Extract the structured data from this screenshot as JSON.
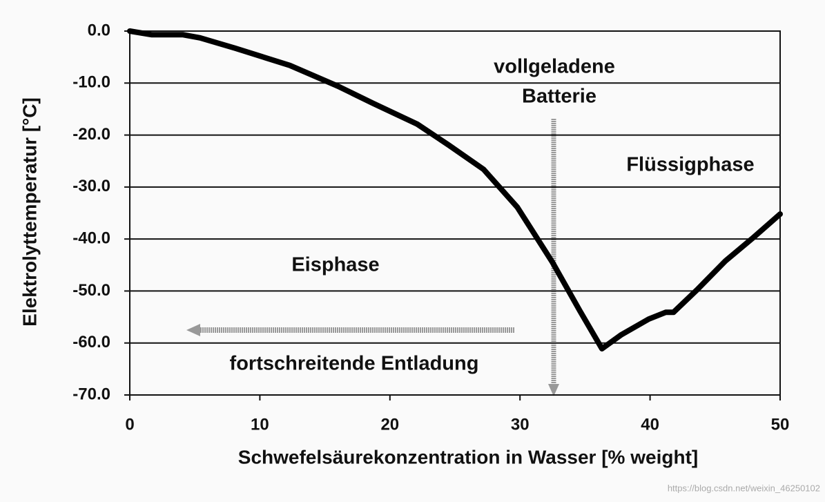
{
  "chart_data": {
    "type": "line",
    "y_label": "Elektrolyttemperatur [°C]",
    "x_label": "Schwefelsäurekonzentration in Wasser [% weight]",
    "x": [
      0,
      1.7,
      4.1,
      5.4,
      8.1,
      12.3,
      16.0,
      18.7,
      22.1,
      24.5,
      27.2,
      29.8,
      32.5,
      34.6,
      36.3,
      37.8,
      39.9,
      41.2,
      41.8,
      43.6,
      45.8,
      47.9,
      50
    ],
    "values": [
      0,
      -0.7,
      -0.7,
      -1.3,
      -3.3,
      -6.6,
      -10.6,
      -13.9,
      -17.9,
      -21.9,
      -26.6,
      -33.9,
      -44.5,
      -53.8,
      -61.1,
      -58.4,
      -55.4,
      -54.1,
      -54.1,
      -49.8,
      -44.2,
      -39.8,
      -35.2
    ],
    "color": "#000000",
    "xlim": [
      0,
      50
    ],
    "xticks": [
      0,
      10,
      20,
      30,
      40,
      50
    ],
    "ylim": [
      -70,
      0
    ],
    "yticks": [
      {
        "value": 0,
        "label": "0.0"
      },
      {
        "value": -10,
        "label": "-10.0"
      },
      {
        "value": -20,
        "label": "-20.0"
      },
      {
        "value": -30,
        "label": "-30.0"
      },
      {
        "value": -40,
        "label": "-40.0"
      },
      {
        "value": -50,
        "label": "-50.0"
      },
      {
        "value": -60,
        "label": "-60.0"
      },
      {
        "value": -70,
        "label": "-70.0"
      }
    ],
    "grid": true,
    "annotations": [
      "vollgeladene",
      "Batterie",
      "Flüssigphase",
      "Eisphase",
      "fortschreitende Entladung"
    ],
    "watermark": "https://blog.csdn.net/weixin_46250102"
  }
}
